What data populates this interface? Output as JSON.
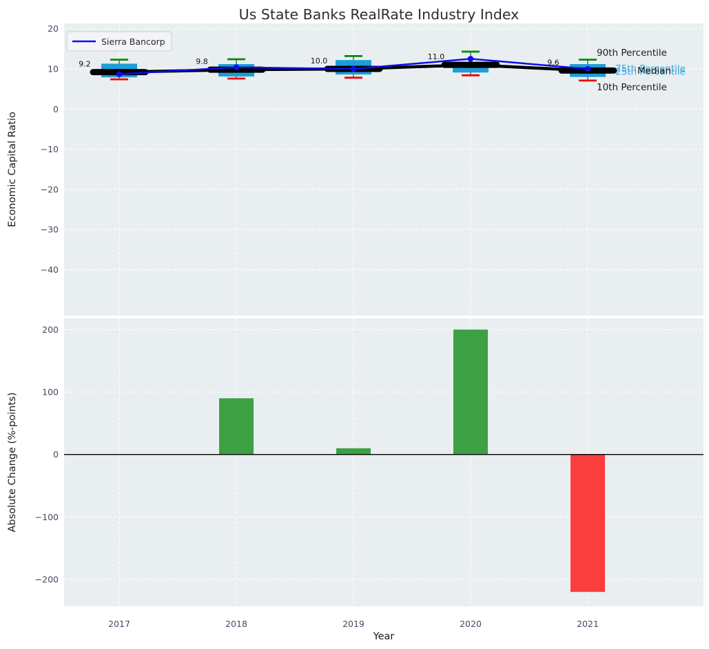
{
  "title": "Us State Banks RealRate Industry Index",
  "legend": {
    "label": "Sierra Bancorp"
  },
  "annotations": {
    "p90": "90th Percentile",
    "p75": "75th Percentile",
    "median": "Median",
    "p25": "25th Percentile",
    "p10": "10th Percentile"
  },
  "colors": {
    "axes_background": "#e9eef1",
    "grid": "#ffffff",
    "box_fill": "#1e9ed6",
    "whisker": "#4a4a4a",
    "cap_top": "#008b00",
    "cap_bottom": "#f10000",
    "median_line": "#000000",
    "sierra_line": "#0d0de8",
    "bar_positive": "#3da042",
    "bar_negative": "#fa3e3e",
    "tick_label": "#3d4c63",
    "annotation_cyan": "#3aa8dd",
    "zero_line": "#000000",
    "legend_background": "#f2f4f6",
    "legend_border": "#c9ccd0"
  },
  "chart_data": [
    {
      "type": "box",
      "subplot": "top",
      "ylabel": "Economic Capital Ratio",
      "categories": [
        "2017",
        "2018",
        "2019",
        "2020",
        "2021"
      ],
      "yticks": [
        "20",
        "10",
        "0",
        "−10",
        "−20",
        "−30",
        "−40"
      ],
      "ylim": [
        -51.4,
        21.3
      ],
      "grid": true,
      "legend_position": "upper left",
      "percentiles": [
        {
          "x": "2017",
          "p90": 12.3,
          "p75": 11.3,
          "median": 9.2,
          "p25": 7.9,
          "p10": 7.4
        },
        {
          "x": "2018",
          "p90": 12.4,
          "p75": 11.2,
          "median": 9.8,
          "p25": 8.1,
          "p10": 7.6
        },
        {
          "x": "2019",
          "p90": 13.2,
          "p75": 12.2,
          "median": 10.0,
          "p25": 8.6,
          "p10": 7.8
        },
        {
          "x": "2020",
          "p90": 14.3,
          "p75": 11.5,
          "median": 11.0,
          "p25": 9.1,
          "p10": 8.4
        },
        {
          "x": "2021",
          "p90": 12.3,
          "p75": 11.2,
          "median": 9.6,
          "p25": 8.0,
          "p10": 7.1
        }
      ],
      "median_labels": [
        "9.2",
        "9.8",
        "10.0",
        "11.0",
        "9.6"
      ],
      "series": [
        {
          "name": "Sierra Bancorp",
          "values": [
            8.7,
            10.4,
            10.0,
            12.5,
            10.0
          ]
        }
      ]
    },
    {
      "type": "bar",
      "subplot": "bottom",
      "ylabel": "Absolute Change (%-points)",
      "xlabel": "Year",
      "categories": [
        "2017",
        "2018",
        "2019",
        "2020",
        "2021"
      ],
      "values": [
        0,
        90,
        10,
        200,
        -220
      ],
      "yticks": [
        "200",
        "100",
        "0",
        "−100",
        "−200"
      ],
      "ylim": [
        -243,
        218
      ],
      "grid": true
    }
  ]
}
